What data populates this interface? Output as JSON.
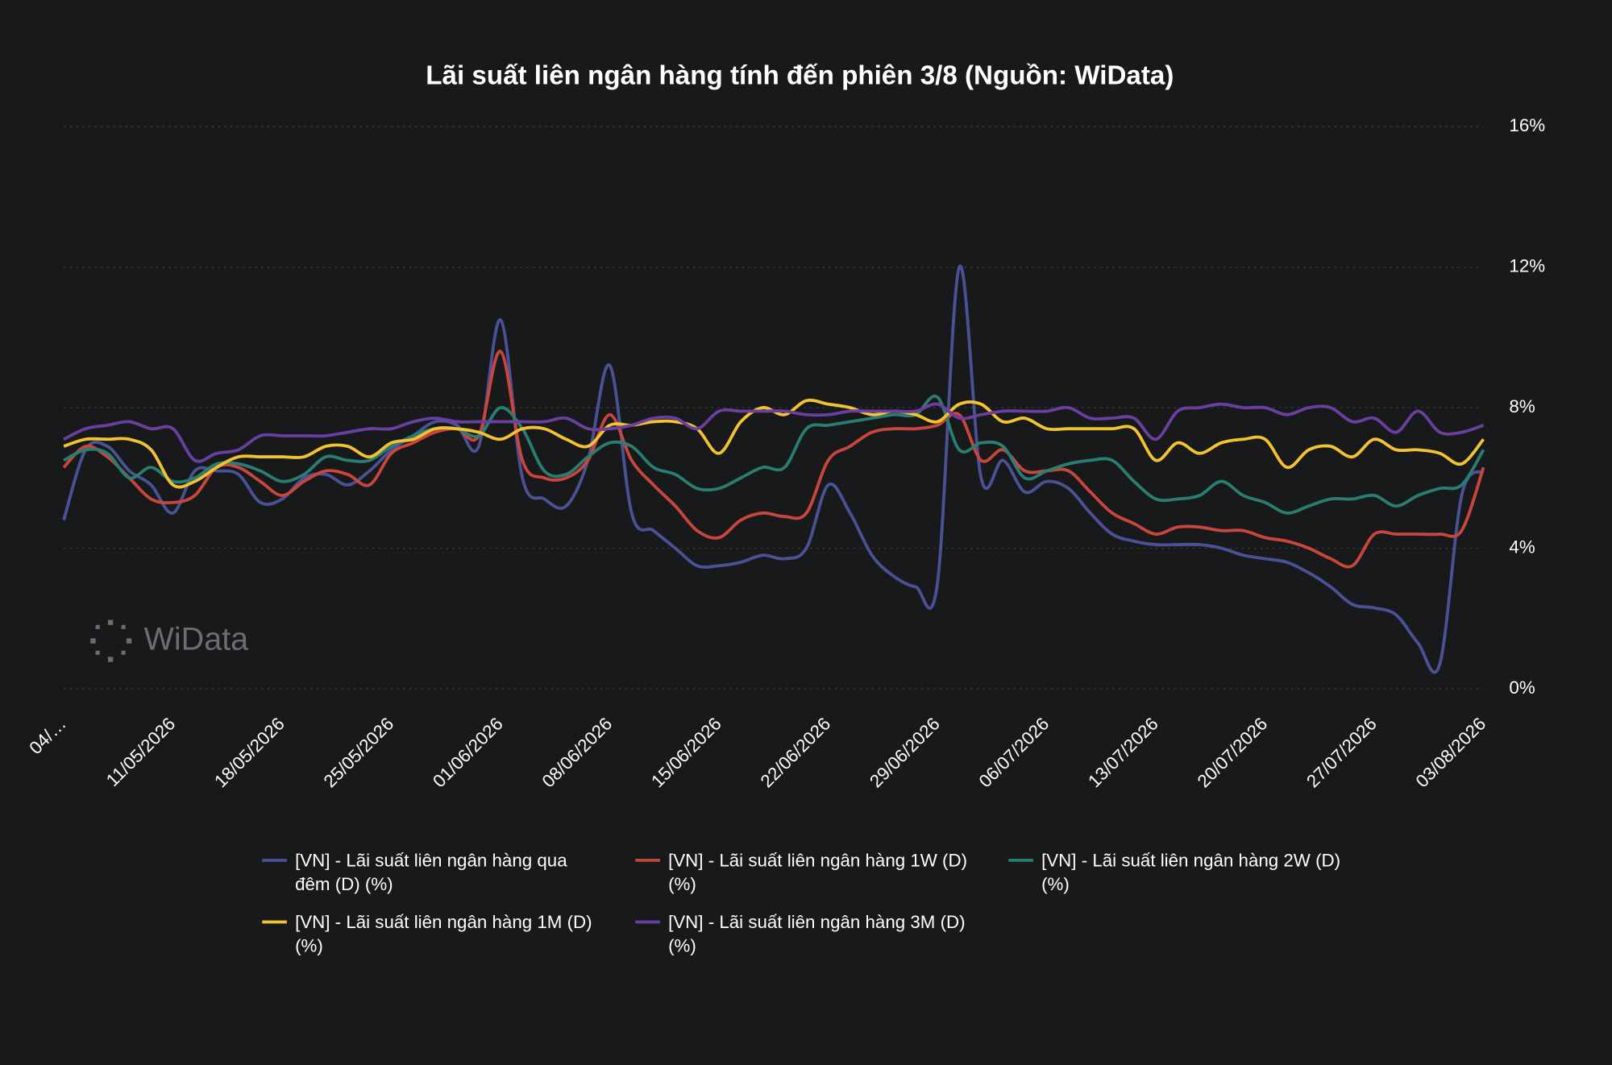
{
  "chart_data": {
    "type": "line",
    "title": "Lãi suất liên ngân hàng tính đến phiên 3/8 (Nguồn: WiData)",
    "watermark": "WiData",
    "x": [
      "04/…",
      null,
      null,
      null,
      null,
      "11/05/2026",
      null,
      null,
      null,
      null,
      "18/05/2026",
      null,
      null,
      null,
      null,
      "25/05/2026",
      null,
      null,
      null,
      null,
      "01/06/2026",
      null,
      null,
      null,
      null,
      "08/06/2026",
      null,
      null,
      null,
      null,
      "15/06/2026",
      null,
      null,
      null,
      null,
      "22/06/2026",
      null,
      null,
      null,
      null,
      "29/06/2026",
      null,
      null,
      null,
      null,
      "06/07/2026",
      null,
      null,
      null,
      null,
      "13/07/2026",
      null,
      null,
      null,
      null,
      "20/07/2026",
      null,
      null,
      null,
      null,
      "27/07/2026",
      null,
      null,
      null,
      null,
      "03/08/2026"
    ],
    "series": [
      {
        "name": "[VN] - Lãi suất liên ngân hàng qua đêm (D) (%)",
        "color": "#4a5296",
        "values": [
          4.8,
          6.8,
          6.9,
          6.2,
          5.8,
          5.0,
          6.2,
          6.2,
          6.1,
          5.3,
          5.4,
          6.0,
          6.1,
          5.8,
          6.2,
          6.8,
          7.2,
          7.6,
          7.5,
          6.9,
          10.5,
          6.0,
          5.4,
          5.2,
          6.5,
          9.2,
          5.0,
          4.5,
          4.0,
          3.5,
          3.5,
          3.6,
          3.8,
          3.7,
          4.0,
          5.8,
          5.0,
          3.8,
          3.2,
          2.9,
          3.0,
          12.0,
          6.0,
          6.5,
          5.6,
          5.9,
          5.7,
          5.0,
          4.4,
          4.2,
          4.1,
          4.1,
          4.1,
          4.0,
          3.8,
          3.7,
          3.6,
          3.3,
          2.9,
          2.4,
          2.3,
          2.1,
          1.3,
          0.7,
          5.5,
          6.2
        ]
      },
      {
        "name": "[VN] - Lãi suất liên ngân hàng 1W (D) (%)",
        "color": "#c9463d",
        "values": [
          6.3,
          6.9,
          6.6,
          6.0,
          5.4,
          5.3,
          5.5,
          6.3,
          6.3,
          5.9,
          5.5,
          5.9,
          6.2,
          6.1,
          5.8,
          6.7,
          7.0,
          7.3,
          7.4,
          7.2,
          9.6,
          6.5,
          6.0,
          6.0,
          6.5,
          7.8,
          6.5,
          5.8,
          5.2,
          4.5,
          4.3,
          4.8,
          5.0,
          4.9,
          5.0,
          6.5,
          6.9,
          7.3,
          7.4,
          7.4,
          7.5,
          7.8,
          6.5,
          6.8,
          6.2,
          6.2,
          6.2,
          5.6,
          5.0,
          4.7,
          4.4,
          4.6,
          4.6,
          4.5,
          4.5,
          4.3,
          4.2,
          4.0,
          3.7,
          3.5,
          4.4,
          4.4,
          4.4,
          4.4,
          4.5,
          6.3
        ]
      },
      {
        "name": "[VN] - Lãi suất liên ngân hàng 2W (D) (%)",
        "color": "#2a7d72",
        "values": [
          6.5,
          6.8,
          6.7,
          6.0,
          6.3,
          5.9,
          6.0,
          6.4,
          6.4,
          6.2,
          5.9,
          6.1,
          6.6,
          6.5,
          6.5,
          6.9,
          7.2,
          7.4,
          7.4,
          7.2,
          8.0,
          7.4,
          6.2,
          6.1,
          6.6,
          7.0,
          6.9,
          6.3,
          6.1,
          5.7,
          5.7,
          6.0,
          6.3,
          6.3,
          7.4,
          7.5,
          7.6,
          7.7,
          7.8,
          7.8,
          8.3,
          6.8,
          7.0,
          6.9,
          6.0,
          6.2,
          6.4,
          6.5,
          6.5,
          5.9,
          5.4,
          5.4,
          5.5,
          5.9,
          5.5,
          5.3,
          5.0,
          5.2,
          5.4,
          5.4,
          5.5,
          5.2,
          5.5,
          5.7,
          5.8,
          6.8
        ]
      },
      {
        "name": "[VN] - Lãi suất liên ngân hàng 1M (D) (%)",
        "color": "#f2c230",
        "values": [
          6.9,
          7.1,
          7.1,
          7.1,
          6.8,
          5.8,
          5.9,
          6.3,
          6.6,
          6.6,
          6.6,
          6.6,
          6.9,
          6.9,
          6.6,
          7.0,
          7.1,
          7.4,
          7.4,
          7.3,
          7.1,
          7.4,
          7.4,
          7.1,
          6.9,
          7.5,
          7.5,
          7.6,
          7.6,
          7.4,
          6.7,
          7.6,
          8.0,
          7.8,
          8.2,
          8.1,
          8.0,
          7.8,
          7.9,
          7.8,
          7.6,
          8.1,
          8.1,
          7.6,
          7.7,
          7.4,
          7.4,
          7.4,
          7.4,
          7.4,
          6.5,
          7.0,
          6.7,
          7.0,
          7.1,
          7.1,
          6.3,
          6.8,
          6.9,
          6.6,
          7.1,
          6.8,
          6.8,
          6.7,
          6.4,
          7.1
        ]
      },
      {
        "name": "[VN] - Lãi suất liên ngân hàng 3M (D) (%)",
        "color": "#6a3fa0",
        "values": [
          7.1,
          7.4,
          7.5,
          7.6,
          7.4,
          7.4,
          6.5,
          6.7,
          6.8,
          7.2,
          7.2,
          7.2,
          7.2,
          7.3,
          7.4,
          7.4,
          7.6,
          7.7,
          7.6,
          7.6,
          7.6,
          7.6,
          7.6,
          7.7,
          7.4,
          7.4,
          7.5,
          7.7,
          7.7,
          7.4,
          7.9,
          7.9,
          7.9,
          7.9,
          7.8,
          7.8,
          7.9,
          7.9,
          7.9,
          7.9,
          8.1,
          7.7,
          7.8,
          7.9,
          7.9,
          7.9,
          8.0,
          7.7,
          7.7,
          7.7,
          7.1,
          7.9,
          8.0,
          8.1,
          8.0,
          8.0,
          7.8,
          8.0,
          8.0,
          7.6,
          7.7,
          7.3,
          7.9,
          7.3,
          7.3,
          7.5
        ]
      }
    ],
    "ylim": [
      0,
      16
    ],
    "yticks": [
      {
        "value": 0,
        "label": "0%"
      },
      {
        "value": 4,
        "label": "4%"
      },
      {
        "value": 8,
        "label": "8%"
      },
      {
        "value": 12,
        "label": "12%"
      },
      {
        "value": 16,
        "label": "16%"
      }
    ],
    "grid": true,
    "legend": "bottom"
  }
}
